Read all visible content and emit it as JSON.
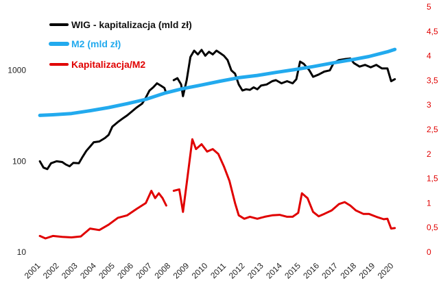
{
  "chart_data": {
    "type": "line",
    "title": "",
    "xlabel": "",
    "ylabel_left": "",
    "ylabel_right": "",
    "x_range": [
      2001,
      2021
    ],
    "x_ticks": [
      "2001",
      "2002",
      "2003",
      "2004",
      "2005",
      "2006",
      "2007",
      "2008",
      "2009",
      "2010",
      "2011",
      "2012",
      "2013",
      "2014",
      "2015",
      "2016",
      "2017",
      "2018",
      "2019",
      "2020"
    ],
    "y_left": {
      "scale": "log",
      "range": [
        10,
        5000
      ],
      "ticks": [
        10,
        100,
        1000
      ],
      "tick_labels": [
        "10",
        "100",
        "1000"
      ]
    },
    "y_right": {
      "scale": "linear",
      "range": [
        0,
        5
      ],
      "ticks": [
        0,
        0.5,
        1,
        1.5,
        2,
        2.5,
        3,
        3.5,
        4,
        4.5,
        5
      ],
      "tick_labels": [
        "0",
        "0,5",
        "1",
        "1,5",
        "2",
        "2,5",
        "3",
        "3,5",
        "4",
        "4,5",
        "5"
      ],
      "color": "#e00000"
    },
    "legend_position": "top-left",
    "grid": false,
    "series": [
      {
        "name": "WIG - kapitalizacja (mld zł)",
        "axis": "left",
        "color": "#000000",
        "points": [
          [
            2001.3,
            100
          ],
          [
            2001.5,
            85
          ],
          [
            2001.7,
            82
          ],
          [
            2001.9,
            95
          ],
          [
            2002.2,
            100
          ],
          [
            2002.5,
            98
          ],
          [
            2002.7,
            92
          ],
          [
            2002.9,
            88
          ],
          [
            2003.1,
            96
          ],
          [
            2003.4,
            95
          ],
          [
            2003.6,
            112
          ],
          [
            2003.8,
            130
          ],
          [
            2004.0,
            145
          ],
          [
            2004.2,
            162
          ],
          [
            2004.5,
            165
          ],
          [
            2004.8,
            180
          ],
          [
            2005.0,
            195
          ],
          [
            2005.2,
            240
          ],
          [
            2005.5,
            270
          ],
          [
            2005.8,
            300
          ],
          [
            2006.0,
            320
          ],
          [
            2006.3,
            360
          ],
          [
            2006.5,
            390
          ],
          [
            2006.8,
            430
          ],
          [
            2007.0,
            500
          ],
          [
            2007.2,
            600
          ],
          [
            2007.4,
            650
          ],
          [
            2007.6,
            720
          ],
          [
            2007.8,
            680
          ],
          [
            2008.0,
            640
          ],
          [
            2008.1,
            560
          ],
          null,
          [
            2008.5,
            780
          ],
          [
            2008.7,
            820
          ],
          [
            2008.9,
            700
          ],
          [
            2009.0,
            520
          ],
          [
            2009.2,
            780
          ],
          [
            2009.4,
            1400
          ],
          [
            2009.6,
            1650
          ],
          [
            2009.8,
            1500
          ],
          [
            2010.0,
            1680
          ],
          [
            2010.2,
            1450
          ],
          [
            2010.4,
            1600
          ],
          [
            2010.6,
            1500
          ],
          [
            2010.8,
            1650
          ],
          [
            2011.0,
            1550
          ],
          [
            2011.2,
            1450
          ],
          [
            2011.4,
            1300
          ],
          [
            2011.6,
            1000
          ],
          [
            2011.8,
            920
          ],
          [
            2012.0,
            700
          ],
          [
            2012.2,
            600
          ],
          [
            2012.4,
            620
          ],
          [
            2012.6,
            610
          ],
          [
            2012.8,
            650
          ],
          [
            2013.0,
            620
          ],
          [
            2013.2,
            680
          ],
          [
            2013.5,
            700
          ],
          [
            2013.8,
            760
          ],
          [
            2014.0,
            780
          ],
          [
            2014.3,
            720
          ],
          [
            2014.6,
            760
          ],
          [
            2014.9,
            720
          ],
          [
            2015.1,
            800
          ],
          [
            2015.3,
            1250
          ],
          [
            2015.5,
            1180
          ],
          [
            2015.8,
            1000
          ],
          [
            2016.0,
            850
          ],
          [
            2016.3,
            900
          ],
          [
            2016.6,
            970
          ],
          [
            2016.9,
            1000
          ],
          [
            2017.1,
            1200
          ],
          [
            2017.4,
            1300
          ],
          [
            2017.7,
            1330
          ],
          [
            2018.0,
            1350
          ],
          [
            2018.2,
            1200
          ],
          [
            2018.5,
            1100
          ],
          [
            2018.8,
            1150
          ],
          [
            2019.1,
            1080
          ],
          [
            2019.4,
            1150
          ],
          [
            2019.7,
            1050
          ],
          [
            2020.0,
            1050
          ],
          [
            2020.2,
            760
          ],
          [
            2020.4,
            800
          ]
        ]
      },
      {
        "name": "M2 (mld zł)",
        "axis": "left",
        "color": "#22aaee",
        "points": [
          [
            2001.3,
            320
          ],
          [
            2002.0,
            325
          ],
          [
            2003.0,
            335
          ],
          [
            2004.0,
            360
          ],
          [
            2005.0,
            390
          ],
          [
            2006.0,
            430
          ],
          [
            2007.0,
            480
          ],
          [
            2008.0,
            560
          ],
          [
            2009.0,
            630
          ],
          [
            2010.0,
            690
          ],
          [
            2011.0,
            760
          ],
          [
            2012.0,
            830
          ],
          [
            2013.0,
            880
          ],
          [
            2014.0,
            950
          ],
          [
            2015.0,
            1020
          ],
          [
            2016.0,
            1100
          ],
          [
            2017.0,
            1200
          ],
          [
            2018.0,
            1300
          ],
          [
            2019.0,
            1420
          ],
          [
            2020.0,
            1600
          ],
          [
            2020.4,
            1700
          ]
        ]
      },
      {
        "name": "Kapitalizacja/M2",
        "axis": "right",
        "color": "#e00000",
        "points": [
          [
            2001.3,
            0.33
          ],
          [
            2001.6,
            0.28
          ],
          [
            2002.0,
            0.33
          ],
          [
            2002.5,
            0.31
          ],
          [
            2003.0,
            0.3
          ],
          [
            2003.5,
            0.32
          ],
          [
            2004.0,
            0.48
          ],
          [
            2004.5,
            0.45
          ],
          [
            2005.0,
            0.56
          ],
          [
            2005.5,
            0.7
          ],
          [
            2006.0,
            0.75
          ],
          [
            2006.5,
            0.88
          ],
          [
            2007.0,
            1.0
          ],
          [
            2007.3,
            1.25
          ],
          [
            2007.5,
            1.1
          ],
          [
            2007.7,
            1.2
          ],
          [
            2007.9,
            1.1
          ],
          [
            2008.1,
            0.95
          ],
          null,
          [
            2008.5,
            1.25
          ],
          [
            2008.8,
            1.28
          ],
          [
            2009.0,
            0.82
          ],
          [
            2009.2,
            1.4
          ],
          [
            2009.5,
            2.3
          ],
          [
            2009.7,
            2.1
          ],
          [
            2010.0,
            2.2
          ],
          [
            2010.3,
            2.05
          ],
          [
            2010.6,
            2.1
          ],
          [
            2010.9,
            2.0
          ],
          [
            2011.2,
            1.75
          ],
          [
            2011.5,
            1.45
          ],
          [
            2011.8,
            1.0
          ],
          [
            2012.0,
            0.75
          ],
          [
            2012.3,
            0.68
          ],
          [
            2012.6,
            0.72
          ],
          [
            2013.0,
            0.68
          ],
          [
            2013.4,
            0.72
          ],
          [
            2013.8,
            0.75
          ],
          [
            2014.2,
            0.76
          ],
          [
            2014.6,
            0.72
          ],
          [
            2014.9,
            0.72
          ],
          [
            2015.2,
            0.8
          ],
          [
            2015.4,
            1.2
          ],
          [
            2015.7,
            1.1
          ],
          [
            2016.0,
            0.82
          ],
          [
            2016.3,
            0.73
          ],
          [
            2016.6,
            0.78
          ],
          [
            2017.0,
            0.85
          ],
          [
            2017.4,
            0.98
          ],
          [
            2017.7,
            1.02
          ],
          [
            2018.0,
            0.95
          ],
          [
            2018.3,
            0.85
          ],
          [
            2018.7,
            0.78
          ],
          [
            2019.0,
            0.78
          ],
          [
            2019.4,
            0.72
          ],
          [
            2019.8,
            0.67
          ],
          [
            2020.0,
            0.68
          ],
          [
            2020.2,
            0.48
          ],
          [
            2020.4,
            0.49
          ]
        ]
      }
    ]
  }
}
